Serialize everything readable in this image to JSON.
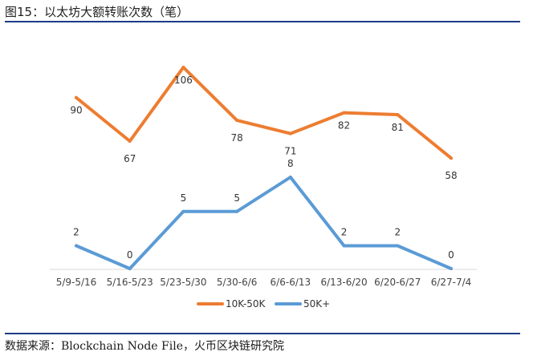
{
  "header": {
    "title": "图15：以太坊大额转账次数（笔）"
  },
  "footer": {
    "source": "数据来源：Blockchain Node File，火币区块链研究院"
  },
  "chart_data": {
    "type": "line",
    "categories": [
      "5/9-5/16",
      "5/16-5/23",
      "5/23-5/30",
      "5/30-6/6",
      "6/6-6/13",
      "6/13-6/20",
      "6/20-6/27",
      "6/27-7/4"
    ],
    "series": [
      {
        "name": "10K-50K",
        "values": [
          90,
          67,
          106,
          78,
          71,
          82,
          81,
          58
        ],
        "color": "#ed7d31"
      },
      {
        "name": "50K+",
        "values": [
          2,
          0,
          5,
          5,
          8,
          2,
          2,
          0
        ],
        "color": "#5b9bd5"
      }
    ],
    "title": "",
    "xlabel": "",
    "ylabel": "",
    "grid": false,
    "legend": "bottom"
  }
}
